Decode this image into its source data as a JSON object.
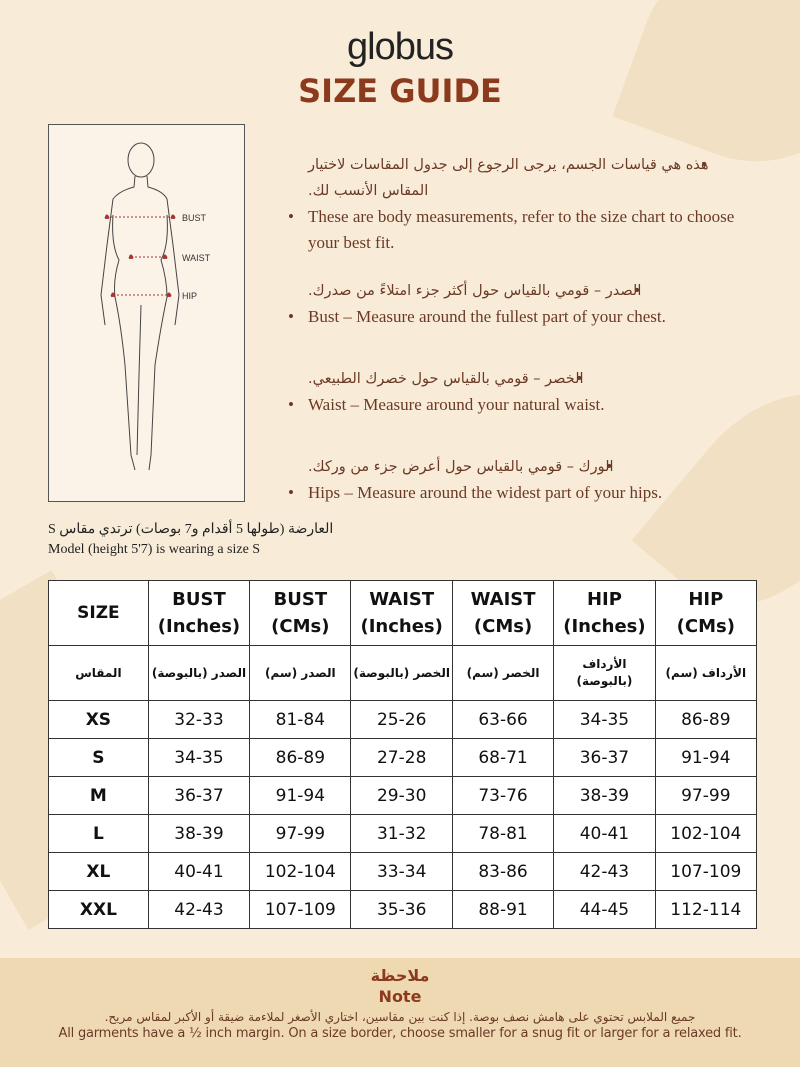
{
  "brand": "globus",
  "title": "SIZE GUIDE",
  "figure": {
    "labels": {
      "bust": "BUST",
      "waist": "WAIST",
      "hip": "HIP"
    }
  },
  "bullets": [
    {
      "ar": "هذه هي قياسات الجسم، يرجى الرجوع إلى جدول المقاسات لاختيار المقاس الأنسب لك.",
      "en": "These are body measurements, refer to the size chart to choose your best fit."
    },
    {
      "ar": "الصدر – قومي بالقياس حول أكثر جزء امتلاءً من صدرك.",
      "en": "Bust – Measure around the fullest part of your chest."
    },
    {
      "ar": "الخصر – قومي بالقياس حول خصرك الطبيعي.",
      "en": "Waist – Measure around your natural waist."
    },
    {
      "ar": "الورك – قومي بالقياس حول أعرض جزء من وركك.",
      "en": "Hips – Measure around the widest part of your hips."
    }
  ],
  "model": {
    "ar": "العارضة (طولها 5 أقدام و7 بوصات) ترتدي مقاس S",
    "en": "Model (height 5'7) is wearing a size S"
  },
  "table": {
    "headers": [
      [
        "SIZE",
        ""
      ],
      [
        "BUST",
        "(Inches)"
      ],
      [
        "BUST",
        "(CMs)"
      ],
      [
        "WAIST",
        "(Inches)"
      ],
      [
        "WAIST",
        "(CMs)"
      ],
      [
        "HIP",
        "(Inches)"
      ],
      [
        "HIP",
        "(CMs)"
      ]
    ],
    "ar_headers": [
      "المقاس",
      "الصدر (بالبوصة)",
      "الصدر (سم)",
      "الخصر (بالبوصة)",
      "الخصر (سم)",
      "الأرداف (بالبوصة)",
      "الأرداف (سم)"
    ],
    "rows": [
      [
        "XS",
        "32-33",
        "81-84",
        "25-26",
        "63-66",
        "34-35",
        "86-89"
      ],
      [
        "S",
        "34-35",
        "86-89",
        "27-28",
        "68-71",
        "36-37",
        "91-94"
      ],
      [
        "M",
        "36-37",
        "91-94",
        "29-30",
        "73-76",
        "38-39",
        "97-99"
      ],
      [
        "L",
        "38-39",
        "97-99",
        "31-32",
        "78-81",
        "40-41",
        "102-104"
      ],
      [
        "XL",
        "40-41",
        "102-104",
        "33-34",
        "83-86",
        "42-43",
        "107-109"
      ],
      [
        "XXL",
        "42-43",
        "107-109",
        "35-36",
        "88-91",
        "44-45",
        "112-114"
      ]
    ]
  },
  "note": {
    "title_ar": "ملاحظة",
    "title_en": "Note",
    "text_ar": "جميع الملابس تحتوي على هامش نصف بوصة. إذا كنت بين مقاسين، اختاري الأصغر لملاءمة ضيقة أو الأكبر لمقاس مريح.",
    "text_en": "All garments have a ½ inch margin. On a size border, choose smaller for a snug fit or larger for a relaxed fit."
  }
}
